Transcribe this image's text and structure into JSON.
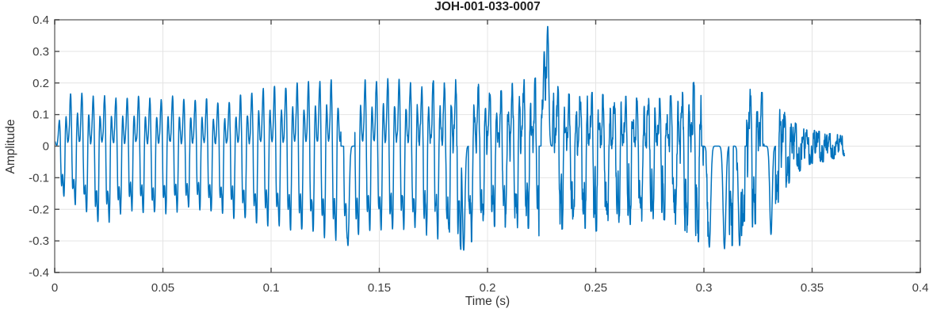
{
  "figure": {
    "title": "JOH-001-033-0007",
    "xlabel": "Time (s)",
    "ylabel": "Amplitude"
  },
  "chart_data": {
    "type": "line",
    "title": "JOH-001-033-0007",
    "xlabel": "Time (s)",
    "ylabel": "Amplitude",
    "xlim": [
      0,
      0.4
    ],
    "ylim": [
      -0.4,
      0.4
    ],
    "xticks": [
      0,
      0.05,
      0.1,
      0.15,
      0.2,
      0.25,
      0.3,
      0.35,
      0.4
    ],
    "xtick_labels": [
      "0",
      "0.05",
      "0.1",
      "0.15",
      "0.2",
      "0.25",
      "0.3",
      "0.35",
      "0.4"
    ],
    "yticks": [
      -0.4,
      -0.3,
      -0.2,
      -0.1,
      0,
      0.1,
      0.2,
      0.3,
      0.4
    ],
    "ytick_labels": [
      "-0.4",
      "-0.3",
      "-0.2",
      "-0.1",
      "0",
      "0.1",
      "0.2",
      "0.3",
      "0.4"
    ],
    "grid": true,
    "box": true,
    "legend": null,
    "line_color": "#0072BD",
    "grid_color": "#e4e4e4",
    "box_color": "#8c8c8c",
    "tick_color": "#4d4d4d",
    "background": "#ffffff",
    "series": [
      {
        "name": "JOH-001-033-0007",
        "kind": "audio-waveform",
        "duration_s": 0.365,
        "fundamental_hz": 191,
        "envelope_t_max_min": [
          [
            0,
            0.02,
            -0.05
          ],
          [
            0.002,
            0.08,
            -0.16
          ],
          [
            0.005,
            0.15,
            -0.17
          ],
          [
            0.009,
            0.18,
            -0.19
          ],
          [
            0.013,
            0.17,
            -0.21
          ],
          [
            0.017,
            0.16,
            -0.24
          ],
          [
            0.021,
            0.16,
            -0.26
          ],
          [
            0.025,
            0.16,
            -0.25
          ],
          [
            0.03,
            0.15,
            -0.23
          ],
          [
            0.035,
            0.16,
            -0.21
          ],
          [
            0.04,
            0.16,
            -0.22
          ],
          [
            0.045,
            0.15,
            -0.23
          ],
          [
            0.05,
            0.15,
            -0.22
          ],
          [
            0.055,
            0.16,
            -0.22
          ],
          [
            0.06,
            0.15,
            -0.21
          ],
          [
            0.065,
            0.15,
            -0.2
          ],
          [
            0.07,
            0.15,
            -0.22
          ],
          [
            0.075,
            0.14,
            -0.22
          ],
          [
            0.08,
            0.14,
            -0.23
          ],
          [
            0.085,
            0.16,
            -0.24
          ],
          [
            0.09,
            0.17,
            -0.25
          ],
          [
            0.095,
            0.18,
            -0.26
          ],
          [
            0.1,
            0.19,
            -0.26
          ],
          [
            0.105,
            0.19,
            -0.27
          ],
          [
            0.11,
            0.2,
            -0.28
          ],
          [
            0.115,
            0.2,
            -0.28
          ],
          [
            0.12,
            0.21,
            -0.29
          ],
          [
            0.125,
            0.21,
            -0.3
          ],
          [
            0.13,
            0.21,
            -0.31
          ],
          [
            0.135,
            0.22,
            -0.31
          ],
          [
            0.14,
            0.21,
            -0.3
          ],
          [
            0.145,
            0.21,
            -0.28
          ],
          [
            0.15,
            0.21,
            -0.28
          ],
          [
            0.155,
            0.22,
            -0.28
          ],
          [
            0.16,
            0.21,
            -0.27
          ],
          [
            0.165,
            0.2,
            -0.28
          ],
          [
            0.17,
            0.19,
            -0.28
          ],
          [
            0.175,
            0.21,
            -0.29
          ],
          [
            0.18,
            0.2,
            -0.3
          ],
          [
            0.185,
            0.21,
            -0.32
          ],
          [
            0.189,
            0.22,
            -0.33
          ],
          [
            0.193,
            0.21,
            -0.3
          ],
          [
            0.197,
            0.19,
            -0.27
          ],
          [
            0.201,
            0.18,
            -0.26
          ],
          [
            0.205,
            0.17,
            -0.25
          ],
          [
            0.21,
            0.19,
            -0.26
          ],
          [
            0.215,
            0.22,
            -0.27
          ],
          [
            0.219,
            0.2,
            -0.26
          ],
          [
            0.223,
            0.22,
            -0.28
          ],
          [
            0.227,
            0.25,
            -0.3
          ],
          [
            0.231,
            0.2,
            -0.28
          ],
          [
            0.235,
            0.17,
            -0.26
          ],
          [
            0.24,
            0.16,
            -0.25
          ],
          [
            0.245,
            0.17,
            -0.26
          ],
          [
            0.25,
            0.17,
            -0.27
          ],
          [
            0.255,
            0.16,
            -0.25
          ],
          [
            0.26,
            0.15,
            -0.24
          ],
          [
            0.265,
            0.16,
            -0.25
          ],
          [
            0.27,
            0.15,
            -0.24
          ],
          [
            0.275,
            0.16,
            -0.23
          ],
          [
            0.28,
            0.15,
            -0.23
          ],
          [
            0.285,
            0.16,
            -0.24
          ],
          [
            0.29,
            0.17,
            -0.26
          ],
          [
            0.295,
            0.2,
            -0.29
          ],
          [
            0.299,
            0.22,
            -0.31
          ],
          [
            0.303,
            0.24,
            -0.32
          ],
          [
            0.307,
            0.26,
            -0.32
          ],
          [
            0.311,
            0.24,
            -0.32
          ],
          [
            0.315,
            0.22,
            -0.31
          ],
          [
            0.319,
            0.2,
            -0.29
          ],
          [
            0.323,
            0.17,
            -0.25
          ],
          [
            0.327,
            0.17,
            -0.23
          ],
          [
            0.33,
            0.24,
            -0.27
          ],
          [
            0.333,
            0.15,
            -0.2
          ],
          [
            0.336,
            0.12,
            -0.15
          ],
          [
            0.34,
            0.09,
            -0.11
          ],
          [
            0.344,
            0.06,
            -0.08
          ],
          [
            0.348,
            0.05,
            -0.06
          ],
          [
            0.352,
            0.05,
            -0.05
          ],
          [
            0.356,
            0.04,
            -0.05
          ],
          [
            0.36,
            0.04,
            -0.04
          ],
          [
            0.365,
            0.03,
            -0.03
          ]
        ],
        "peak_spikes_t_val_width": [
          [
            0.2262,
            0.3,
            0.0006
          ],
          [
            0.2278,
            0.38,
            0.0007
          ],
          [
            0.3065,
            0.26,
            0.001
          ],
          [
            0.3295,
            0.26,
            0.0009
          ]
        ],
        "trough_spikes_t_val_width": [
          [
            0.1355,
            -0.315,
            0.0008
          ],
          [
            0.189,
            -0.33,
            0.0008
          ],
          [
            0.3025,
            -0.32,
            0.0009
          ],
          [
            0.3095,
            -0.325,
            0.0009
          ],
          [
            0.3165,
            -0.315,
            0.0008
          ],
          [
            0.331,
            -0.28,
            0.0008
          ]
        ],
        "roughness_t_amount": [
          [
            0,
            0.03
          ],
          [
            0.15,
            0.03
          ],
          [
            0.17,
            0.08
          ],
          [
            0.19,
            0.15
          ],
          [
            0.21,
            0.2
          ],
          [
            0.23,
            0.25
          ],
          [
            0.27,
            0.25
          ],
          [
            0.3,
            0.3
          ],
          [
            0.33,
            0.35
          ],
          [
            0.338,
            0.5
          ],
          [
            0.345,
            0.7
          ],
          [
            0.365,
            0.8
          ]
        ],
        "harmonics_mult_amp_phase": [
          [
            1,
            0.6,
            0
          ],
          [
            2,
            0.36,
            2.2
          ],
          [
            3,
            0.27,
            0.9
          ],
          [
            4,
            0.14,
            2.8
          ]
        ],
        "noise_hz_amp_phase": [
          [
            830,
            0.5,
            0.3
          ],
          [
            1410,
            0.4,
            1.1
          ],
          [
            2250,
            0.3,
            2.2
          ],
          [
            3600,
            0.2,
            0.9
          ]
        ],
        "carrier_norm": 0.92
      }
    ]
  }
}
